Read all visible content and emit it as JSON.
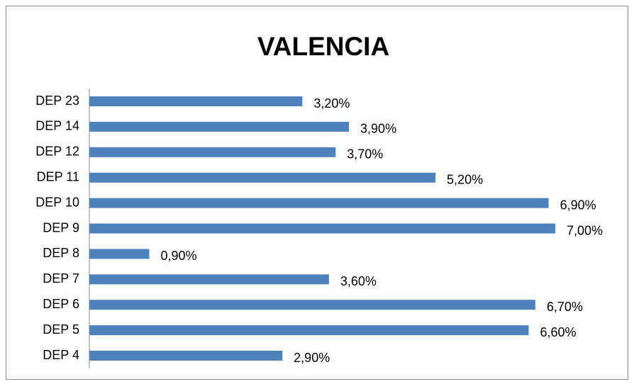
{
  "chart_data": {
    "type": "bar",
    "orientation": "horizontal",
    "title": "VALENCIA",
    "categories": [
      "DEP 23",
      "DEP 14",
      "DEP 12",
      "DEP 11",
      "DEP 10",
      "DEP 9",
      "DEP 8",
      "DEP 7",
      "DEP 6",
      "DEP 5",
      "DEP 4"
    ],
    "values": [
      3.2,
      3.9,
      3.7,
      5.2,
      6.9,
      7.0,
      0.9,
      3.6,
      6.7,
      6.6,
      2.9
    ],
    "value_labels": [
      "3,20%",
      "3,90%",
      "3,70%",
      "5,20%",
      "6,90%",
      "7,00%",
      "0,90%",
      "3,60%",
      "6,70%",
      "6,60%",
      "2,90%"
    ],
    "color": "#4f81bd"
  }
}
